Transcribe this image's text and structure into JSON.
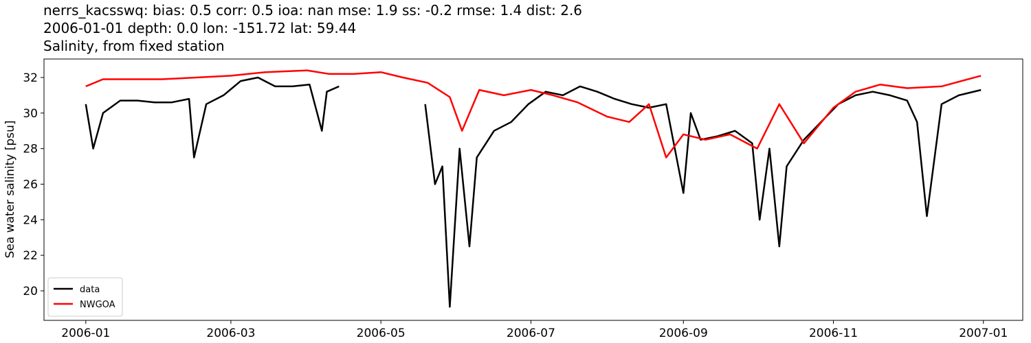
{
  "chart_data": {
    "type": "line",
    "title_lines": [
      "nerrs_kacsswq: bias: 0.5  corr: 0.5  ioa: nan  mse: 1.9  ss: -0.2  rmse: 1.4  dist: 2.6",
      "2006-01-01 depth: 0.0 lon: -151.72 lat: 59.44",
      "Salinity, from fixed station"
    ],
    "ylabel": "Sea water salinity [psu]",
    "xlim": [
      "2005-12-15",
      "2007-01-17"
    ],
    "ylim": [
      18.34,
      33.04
    ],
    "xticks": [
      {
        "value": "2006-01-01",
        "label": "2006-01"
      },
      {
        "value": "2006-03-01",
        "label": "2006-03"
      },
      {
        "value": "2006-05-01",
        "label": "2006-05"
      },
      {
        "value": "2006-07-01",
        "label": "2006-07"
      },
      {
        "value": "2006-09-01",
        "label": "2006-09"
      },
      {
        "value": "2006-11-01",
        "label": "2006-11"
      },
      {
        "value": "2007-01-01",
        "label": "2007-01"
      }
    ],
    "yticks": [
      20,
      22,
      24,
      26,
      28,
      30,
      32
    ],
    "grid": false,
    "legend": "lower left",
    "series": [
      {
        "name": "data",
        "color": "#000000",
        "x": [
          "2006-01-01",
          "2006-01-04",
          "2006-01-08",
          "2006-01-15",
          "2006-01-22",
          "2006-01-29",
          "2006-02-05",
          "2006-02-12",
          "2006-02-14",
          "2006-02-19",
          "2006-02-26",
          "2006-03-05",
          "2006-03-12",
          "2006-03-19",
          "2006-03-26",
          "2006-04-02",
          "2006-04-07",
          "2006-04-09",
          "2006-04-14",
          "2006-04-20",
          "2006-05-19",
          "2006-05-23",
          "2006-05-26",
          "2006-05-29",
          "2006-06-02",
          "2006-06-06",
          "2006-06-09",
          "2006-06-16",
          "2006-06-23",
          "2006-06-30",
          "2006-07-07",
          "2006-07-14",
          "2006-07-21",
          "2006-07-28",
          "2006-08-04",
          "2006-08-11",
          "2006-08-18",
          "2006-08-25",
          "2006-09-01",
          "2006-09-04",
          "2006-09-08",
          "2006-09-15",
          "2006-09-22",
          "2006-09-29",
          "2006-10-02",
          "2006-10-06",
          "2006-10-10",
          "2006-10-13",
          "2006-10-20",
          "2006-10-27",
          "2006-11-03",
          "2006-11-10",
          "2006-11-17",
          "2006-11-24",
          "2006-12-01",
          "2006-12-05",
          "2006-12-09",
          "2006-12-15",
          "2006-12-22",
          "2006-12-31"
        ],
        "values": [
          30.5,
          28.0,
          30.0,
          30.7,
          30.7,
          30.6,
          30.6,
          30.8,
          27.5,
          30.5,
          31.0,
          31.8,
          32.0,
          31.5,
          31.5,
          31.6,
          29.0,
          31.2,
          31.5,
          null,
          30.5,
          26.0,
          27.0,
          19.1,
          28.0,
          22.5,
          27.5,
          29.0,
          29.5,
          30.5,
          31.2,
          31.0,
          31.5,
          31.2,
          30.8,
          30.5,
          30.3,
          30.5,
          25.5,
          30.0,
          28.5,
          28.7,
          29.0,
          28.3,
          24.0,
          28.0,
          22.5,
          27.0,
          28.5,
          29.5,
          30.5,
          31.0,
          31.2,
          31.0,
          30.7,
          29.5,
          24.2,
          30.5,
          31.0,
          31.3
        ]
      },
      {
        "name": "NWGOA",
        "color": "#ff0000",
        "x": [
          "2006-01-01",
          "2006-01-08",
          "2006-02-01",
          "2006-03-01",
          "2006-03-15",
          "2006-04-01",
          "2006-04-10",
          "2006-04-20",
          "2006-05-01",
          "2006-05-10",
          "2006-05-20",
          "2006-05-29",
          "2006-06-03",
          "2006-06-10",
          "2006-06-20",
          "2006-07-01",
          "2006-07-10",
          "2006-07-20",
          "2006-08-01",
          "2006-08-10",
          "2006-08-18",
          "2006-08-25",
          "2006-09-01",
          "2006-09-10",
          "2006-09-20",
          "2006-10-01",
          "2006-10-10",
          "2006-10-20",
          "2006-11-01",
          "2006-11-10",
          "2006-11-20",
          "2006-12-01",
          "2006-12-15",
          "2006-12-31"
        ],
        "values": [
          31.5,
          31.9,
          31.9,
          32.1,
          32.3,
          32.4,
          32.2,
          32.2,
          32.3,
          32.0,
          31.7,
          30.9,
          29.0,
          31.3,
          31.0,
          31.3,
          31.0,
          30.6,
          29.8,
          29.5,
          30.5,
          27.5,
          28.8,
          28.5,
          28.8,
          28.0,
          30.5,
          28.3,
          30.3,
          31.2,
          31.6,
          31.4,
          31.5,
          32.1
        ]
      }
    ]
  }
}
